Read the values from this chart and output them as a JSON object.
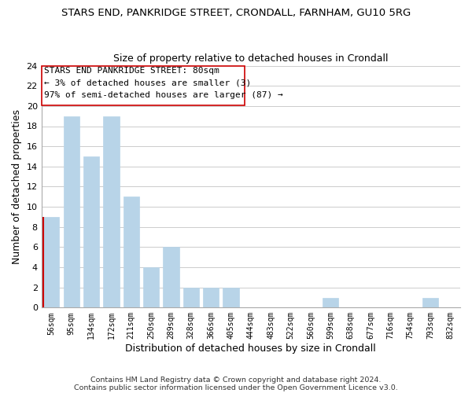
{
  "title": "STARS END, PANKRIDGE STREET, CRONDALL, FARNHAM, GU10 5RG",
  "subtitle": "Size of property relative to detached houses in Crondall",
  "xlabel": "Distribution of detached houses by size in Crondall",
  "ylabel": "Number of detached properties",
  "bar_color": "#b8d4e8",
  "highlight_bar_edge_color": "#cc0000",
  "categories": [
    "56sqm",
    "95sqm",
    "134sqm",
    "172sqm",
    "211sqm",
    "250sqm",
    "289sqm",
    "328sqm",
    "366sqm",
    "405sqm",
    "444sqm",
    "483sqm",
    "522sqm",
    "560sqm",
    "599sqm",
    "638sqm",
    "677sqm",
    "716sqm",
    "754sqm",
    "793sqm",
    "832sqm"
  ],
  "values": [
    9,
    19,
    15,
    19,
    11,
    4,
    6,
    2,
    2,
    2,
    0,
    0,
    0,
    0,
    1,
    0,
    0,
    0,
    0,
    1,
    0
  ],
  "highlight_index": 0,
  "ylim": [
    0,
    24
  ],
  "yticks": [
    0,
    2,
    4,
    6,
    8,
    10,
    12,
    14,
    16,
    18,
    20,
    22,
    24
  ],
  "annotation_line1": "STARS END PANKRIDGE STREET: 80sqm",
  "annotation_line2": "← 3% of detached houses are smaller (3)",
  "annotation_line3": "97% of semi-detached houses are larger (87) →",
  "footer_line1": "Contains HM Land Registry data © Crown copyright and database right 2024.",
  "footer_line2": "Contains public sector information licensed under the Open Government Licence v3.0.",
  "grid_color": "#cccccc",
  "background_color": "#ffffff"
}
